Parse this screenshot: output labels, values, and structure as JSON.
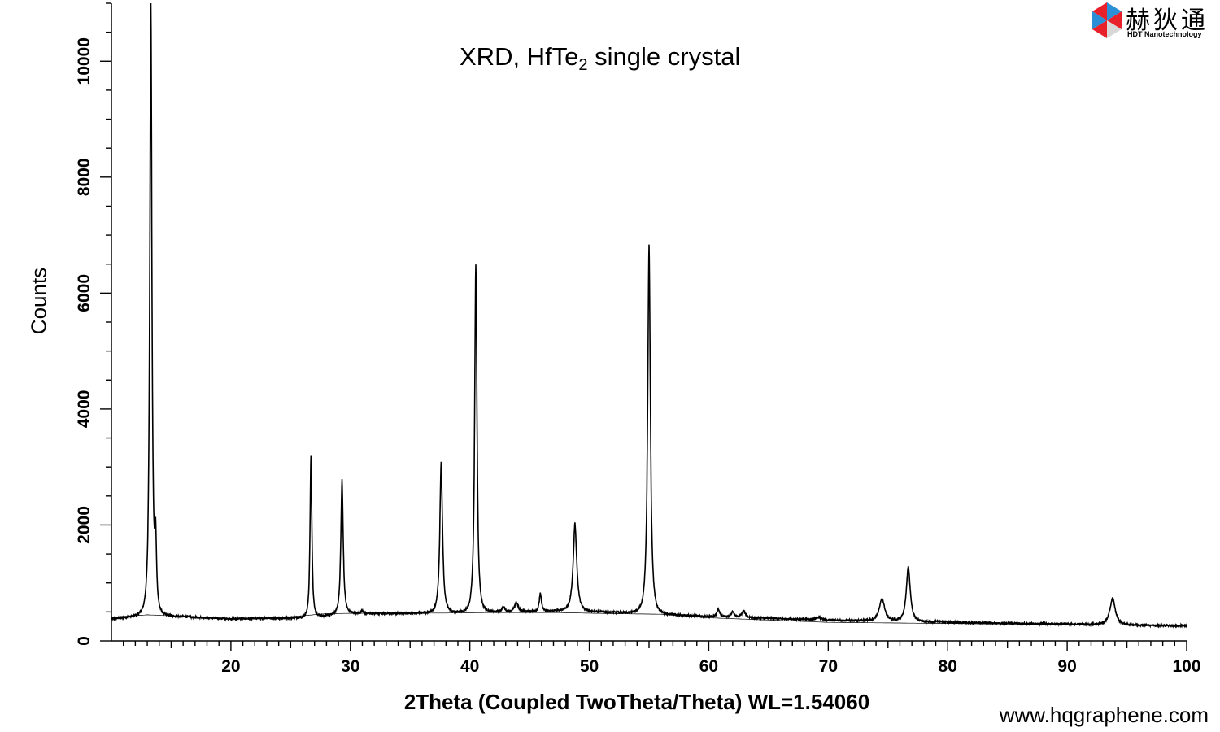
{
  "title": {
    "main": "XRD, HfTe",
    "subscript": "2",
    "suffix": " single crystal"
  },
  "logo": {
    "chinese": "赫狄通",
    "english": "HDT Nanotechnology",
    "colors": [
      "#e8202a",
      "#2a8fd6",
      "#d8d8d8"
    ]
  },
  "website": "www.hqgraphene.com",
  "chart_data": {
    "type": "line",
    "title": "XRD, HfTe2 single crystal",
    "xlabel": "2Theta (Coupled TwoTheta/Theta) WL=1.54060",
    "ylabel": "Counts",
    "xlim": [
      10,
      100
    ],
    "ylim": [
      0,
      11000
    ],
    "x_ticks": [
      20,
      30,
      40,
      50,
      60,
      70,
      80,
      90,
      100
    ],
    "y_ticks": [
      0,
      2000,
      4000,
      6000,
      8000,
      10000
    ],
    "grid": false,
    "line_color": "#000000",
    "series": [
      {
        "role": "measured",
        "baseline": [
          [
            10,
            380
          ],
          [
            13,
            450
          ],
          [
            20,
            380
          ],
          [
            26,
            400
          ],
          [
            30,
            470
          ],
          [
            36,
            480
          ],
          [
            42,
            500
          ],
          [
            48,
            520
          ],
          [
            54,
            480
          ],
          [
            60,
            420
          ],
          [
            70,
            360
          ],
          [
            80,
            320
          ],
          [
            90,
            290
          ],
          [
            100,
            260
          ]
        ],
        "peaks": [
          {
            "x": 13.3,
            "y": 11000,
            "w": 0.12
          },
          {
            "x": 13.7,
            "y": 1610,
            "w": 0.1
          },
          {
            "x": 26.7,
            "y": 3200,
            "w": 0.1
          },
          {
            "x": 29.3,
            "y": 2780,
            "w": 0.13
          },
          {
            "x": 31.0,
            "y": 530,
            "w": 0.12
          },
          {
            "x": 37.6,
            "y": 3080,
            "w": 0.15
          },
          {
            "x": 40.5,
            "y": 6500,
            "w": 0.13
          },
          {
            "x": 42.8,
            "y": 590,
            "w": 0.15
          },
          {
            "x": 43.9,
            "y": 660,
            "w": 0.2
          },
          {
            "x": 45.9,
            "y": 820,
            "w": 0.12
          },
          {
            "x": 48.8,
            "y": 2030,
            "w": 0.2
          },
          {
            "x": 55.0,
            "y": 6830,
            "w": 0.15
          },
          {
            "x": 60.8,
            "y": 550,
            "w": 0.15
          },
          {
            "x": 62.0,
            "y": 510,
            "w": 0.15
          },
          {
            "x": 62.9,
            "y": 520,
            "w": 0.2
          },
          {
            "x": 69.2,
            "y": 410,
            "w": 0.25
          },
          {
            "x": 74.5,
            "y": 730,
            "w": 0.3
          },
          {
            "x": 76.7,
            "y": 1290,
            "w": 0.22
          },
          {
            "x": 79.4,
            "y": 340,
            "w": 0.3
          },
          {
            "x": 93.8,
            "y": 740,
            "w": 0.3
          }
        ]
      },
      {
        "role": "background",
        "values": [
          [
            10,
            410
          ],
          [
            13,
            450
          ],
          [
            20,
            390
          ],
          [
            24,
            400
          ],
          [
            28,
            470
          ],
          [
            32,
            480
          ],
          [
            38,
            480
          ],
          [
            42,
            490
          ],
          [
            47,
            490
          ],
          [
            52,
            470
          ],
          [
            56,
            460
          ],
          [
            60,
            400
          ],
          [
            70,
            320
          ],
          [
            80,
            300
          ],
          [
            90,
            280
          ],
          [
            100,
            260
          ]
        ]
      }
    ]
  }
}
